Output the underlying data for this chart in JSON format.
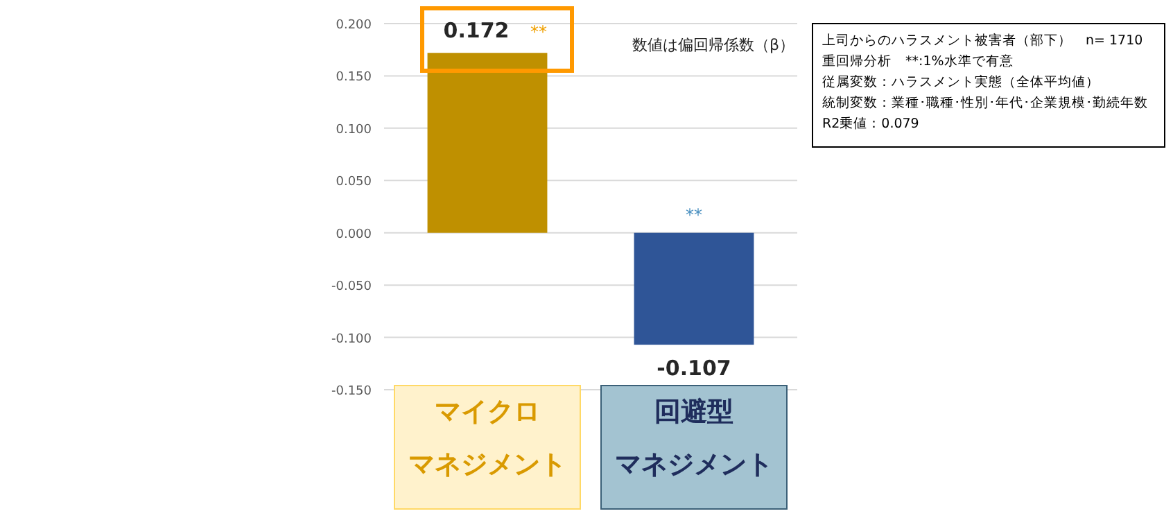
{
  "chart_data": {
    "type": "bar",
    "categories": [
      "マイクロマネジメント",
      "回避型マネジメント"
    ],
    "values": [
      0.172,
      -0.107
    ],
    "colors": [
      "#bf9000",
      "#2f5597"
    ],
    "data_labels": true,
    "ylim": [
      -0.15,
      0.2
    ],
    "yticks": [
      {
        "value": -0.15,
        "label": "-0.150"
      },
      {
        "value": -0.1,
        "label": "-0.100"
      },
      {
        "value": -0.05,
        "label": "-0.050"
      },
      {
        "value": 0,
        "label": "0.000"
      },
      {
        "value": 0.05,
        "label": "0.050"
      },
      {
        "value": 0.1,
        "label": "0.100"
      },
      {
        "value": 0.15,
        "label": "0.150"
      },
      {
        "value": 0.2,
        "label": "0.200"
      }
    ],
    "grid": "y",
    "annotations": [
      {
        "text": "**",
        "x": "マイクロマネジメント",
        "y": 0.172
      },
      {
        "text": "**",
        "x": "回避型マネジメント",
        "y": 0
      },
      "数値は偏回帰係数（β）",
      "上司からのハラスメント被害者（部下）　n= 1710",
      "重回帰分析　**:1%水準で有意",
      "従属変数：ハラスメント実態（全体平均値）",
      "統制変数：業種･職種･性別･年代･企業規模･勤続年数",
      "R2乗値：0.079"
    ]
  }
}
